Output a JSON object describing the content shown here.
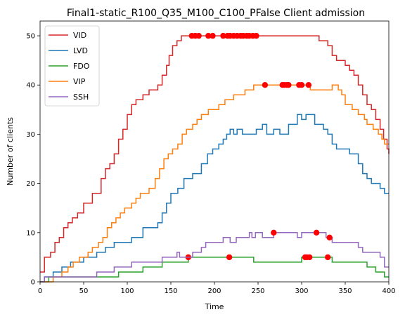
{
  "chart_data": {
    "type": "line",
    "title": "Final1-static_R100_Q35_M100_C100_PFalse Client admission",
    "xlabel": "Time",
    "ylabel": "Number of clients",
    "xlim": [
      0,
      400
    ],
    "ylim": [
      0,
      53
    ],
    "x_ticks": [
      0,
      50,
      100,
      150,
      200,
      250,
      300,
      350,
      400
    ],
    "y_ticks": [
      0,
      10,
      20,
      30,
      40,
      50
    ],
    "grid": false,
    "legend_position": "top-left",
    "marker_color": "#ff0000",
    "series": [
      {
        "name": "VID",
        "color": "#d62728",
        "points": [
          [
            0,
            2
          ],
          [
            5,
            5
          ],
          [
            12,
            6
          ],
          [
            17,
            8
          ],
          [
            22,
            9
          ],
          [
            27,
            11
          ],
          [
            32,
            12
          ],
          [
            37,
            13
          ],
          [
            43,
            14
          ],
          [
            50,
            16
          ],
          [
            60,
            18
          ],
          [
            70,
            21
          ],
          [
            75,
            23
          ],
          [
            80,
            24
          ],
          [
            85,
            26
          ],
          [
            90,
            29
          ],
          [
            95,
            31
          ],
          [
            100,
            34
          ],
          [
            105,
            36
          ],
          [
            110,
            37
          ],
          [
            118,
            38
          ],
          [
            125,
            39
          ],
          [
            135,
            40
          ],
          [
            140,
            42
          ],
          [
            145,
            44
          ],
          [
            148,
            46
          ],
          [
            152,
            48
          ],
          [
            157,
            49
          ],
          [
            162,
            50
          ],
          [
            310,
            50
          ],
          [
            320,
            49
          ],
          [
            330,
            48
          ],
          [
            335,
            46
          ],
          [
            340,
            45
          ],
          [
            350,
            44
          ],
          [
            355,
            43
          ],
          [
            360,
            42
          ],
          [
            365,
            40
          ],
          [
            370,
            38
          ],
          [
            375,
            36
          ],
          [
            380,
            35
          ],
          [
            385,
            33
          ],
          [
            390,
            31
          ],
          [
            394,
            29
          ],
          [
            398,
            27
          ],
          [
            400,
            26
          ]
        ],
        "markers": [
          [
            174,
            50
          ],
          [
            178,
            50
          ],
          [
            182,
            50
          ],
          [
            193,
            50
          ],
          [
            198,
            50
          ],
          [
            210,
            50
          ],
          [
            215,
            50
          ],
          [
            218,
            50
          ],
          [
            222,
            50
          ],
          [
            226,
            50
          ],
          [
            230,
            50
          ],
          [
            233,
            50
          ],
          [
            237,
            50
          ],
          [
            240,
            50
          ],
          [
            244,
            50
          ],
          [
            248,
            50
          ]
        ]
      },
      {
        "name": "LVD",
        "color": "#1f77b4",
        "points": [
          [
            0,
            0
          ],
          [
            5,
            1
          ],
          [
            15,
            2
          ],
          [
            25,
            3
          ],
          [
            35,
            4
          ],
          [
            50,
            5
          ],
          [
            65,
            6
          ],
          [
            75,
            7
          ],
          [
            85,
            8
          ],
          [
            105,
            9
          ],
          [
            118,
            11
          ],
          [
            125,
            11
          ],
          [
            135,
            12
          ],
          [
            140,
            14
          ],
          [
            145,
            16
          ],
          [
            150,
            18
          ],
          [
            158,
            19
          ],
          [
            165,
            21
          ],
          [
            175,
            22
          ],
          [
            185,
            24
          ],
          [
            192,
            26
          ],
          [
            198,
            27
          ],
          [
            205,
            28
          ],
          [
            210,
            29
          ],
          [
            214,
            30
          ],
          [
            218,
            31
          ],
          [
            222,
            30
          ],
          [
            226,
            31
          ],
          [
            232,
            30
          ],
          [
            248,
            31
          ],
          [
            255,
            32
          ],
          [
            260,
            30
          ],
          [
            268,
            31
          ],
          [
            275,
            30
          ],
          [
            285,
            32
          ],
          [
            295,
            34
          ],
          [
            300,
            33
          ],
          [
            305,
            34
          ],
          [
            315,
            32
          ],
          [
            325,
            31
          ],
          [
            330,
            30
          ],
          [
            335,
            28
          ],
          [
            340,
            27
          ],
          [
            355,
            26
          ],
          [
            365,
            24
          ],
          [
            370,
            22
          ],
          [
            375,
            21
          ],
          [
            380,
            20
          ],
          [
            390,
            19
          ],
          [
            395,
            18
          ],
          [
            400,
            18
          ]
        ],
        "markers": []
      },
      {
        "name": "FDO",
        "color": "#2ca02c",
        "points": [
          [
            0,
            0
          ],
          [
            10,
            1
          ],
          [
            90,
            2
          ],
          [
            118,
            3
          ],
          [
            140,
            4
          ],
          [
            170,
            5
          ],
          [
            242,
            5
          ],
          [
            245,
            4
          ],
          [
            295,
            4
          ],
          [
            300,
            5
          ],
          [
            330,
            5
          ],
          [
            335,
            4
          ],
          [
            365,
            4
          ],
          [
            375,
            3
          ],
          [
            385,
            2
          ],
          [
            395,
            1
          ],
          [
            400,
            1
          ]
        ],
        "markers": [
          [
            170,
            5
          ],
          [
            217,
            5
          ],
          [
            304,
            5
          ],
          [
            306,
            5
          ],
          [
            309,
            5
          ],
          [
            330,
            5
          ]
        ]
      },
      {
        "name": "VIP",
        "color": "#ff7f0e",
        "points": [
          [
            0,
            0
          ],
          [
            15,
            1
          ],
          [
            25,
            2
          ],
          [
            32,
            3
          ],
          [
            38,
            4
          ],
          [
            45,
            5
          ],
          [
            55,
            6
          ],
          [
            60,
            7
          ],
          [
            67,
            8
          ],
          [
            72,
            9
          ],
          [
            77,
            11
          ],
          [
            82,
            12
          ],
          [
            87,
            13
          ],
          [
            92,
            14
          ],
          [
            97,
            15
          ],
          [
            105,
            16
          ],
          [
            110,
            17
          ],
          [
            115,
            18
          ],
          [
            125,
            19
          ],
          [
            132,
            21
          ],
          [
            137,
            23
          ],
          [
            142,
            25
          ],
          [
            147,
            26
          ],
          [
            152,
            27
          ],
          [
            158,
            28
          ],
          [
            163,
            30
          ],
          [
            168,
            31
          ],
          [
            175,
            32
          ],
          [
            180,
            33
          ],
          [
            185,
            34
          ],
          [
            193,
            35
          ],
          [
            205,
            36
          ],
          [
            212,
            37
          ],
          [
            222,
            38
          ],
          [
            235,
            39
          ],
          [
            245,
            40
          ],
          [
            305,
            40
          ],
          [
            310,
            39
          ],
          [
            335,
            40
          ],
          [
            342,
            39
          ],
          [
            346,
            38
          ],
          [
            350,
            36
          ],
          [
            358,
            35
          ],
          [
            365,
            34
          ],
          [
            372,
            33
          ],
          [
            375,
            32
          ],
          [
            382,
            31
          ],
          [
            388,
            30
          ],
          [
            392,
            29
          ],
          [
            395,
            28
          ],
          [
            400,
            28
          ]
        ],
        "markers": [
          [
            258,
            40
          ],
          [
            278,
            40
          ],
          [
            280,
            40
          ],
          [
            283,
            40
          ],
          [
            285,
            40
          ],
          [
            297,
            40
          ],
          [
            300,
            40
          ],
          [
            308,
            40
          ]
        ]
      },
      {
        "name": "SSH",
        "color": "#9467bd",
        "points": [
          [
            0,
            0
          ],
          [
            5,
            1
          ],
          [
            65,
            2
          ],
          [
            85,
            3
          ],
          [
            105,
            4
          ],
          [
            140,
            5
          ],
          [
            157,
            6
          ],
          [
            160,
            5
          ],
          [
            175,
            6
          ],
          [
            185,
            7
          ],
          [
            190,
            8
          ],
          [
            210,
            9
          ],
          [
            218,
            8
          ],
          [
            225,
            9
          ],
          [
            240,
            10
          ],
          [
            243,
            9
          ],
          [
            247,
            10
          ],
          [
            255,
            9
          ],
          [
            268,
            10
          ],
          [
            290,
            10
          ],
          [
            295,
            9
          ],
          [
            300,
            10
          ],
          [
            320,
            10
          ],
          [
            328,
            9
          ],
          [
            335,
            8
          ],
          [
            365,
            7
          ],
          [
            370,
            6
          ],
          [
            390,
            5
          ],
          [
            395,
            3
          ],
          [
            400,
            3
          ]
        ],
        "markers": [
          [
            268,
            10
          ],
          [
            317,
            10
          ],
          [
            332,
            9
          ]
        ]
      }
    ]
  }
}
